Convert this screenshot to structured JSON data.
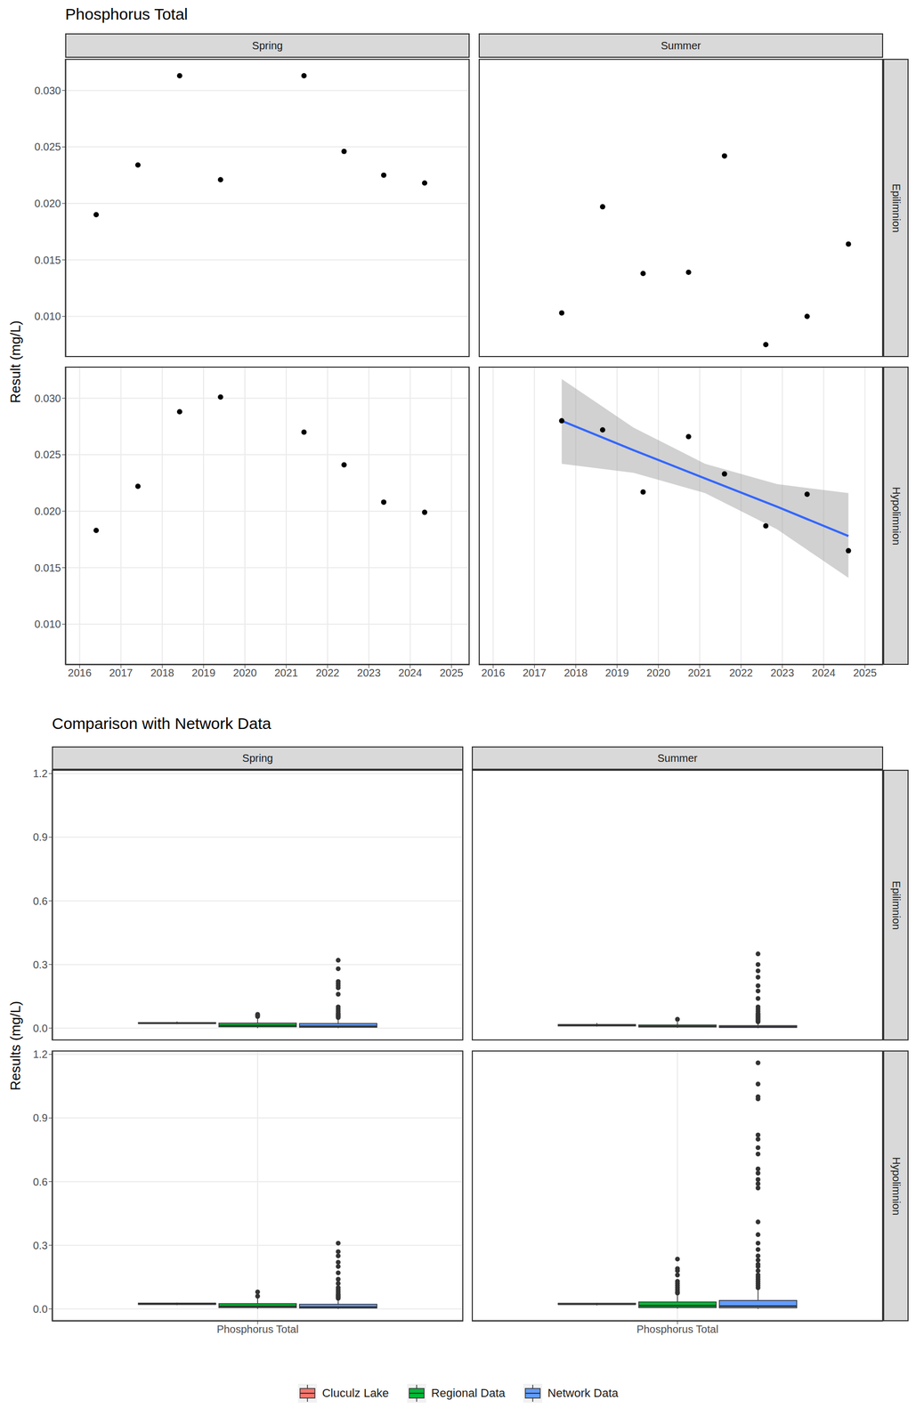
{
  "chart_data": [
    {
      "type": "scatter",
      "title": "Phosphorus Total",
      "y_label": "Result (mg/L)",
      "columns": [
        "Spring",
        "Summer"
      ],
      "rows": [
        "Epilimnion",
        "Hypolimnion"
      ],
      "xlim": [
        2015.65,
        2025.44
      ],
      "xticks": [
        2016,
        2017,
        2018,
        2019,
        2020,
        2021,
        2022,
        2023,
        2024,
        2025
      ],
      "ylim": [
        0.0064,
        0.0328
      ],
      "yticks": [
        {
          "value": 0.01,
          "label": "0.010"
        },
        0.015,
        {
          "value": 0.02,
          "label": "0.020"
        },
        0.025,
        {
          "value": 0.03,
          "label": "0.030"
        }
      ],
      "grid": true,
      "color": "#000000",
      "panels": [
        {
          "column": "Spring",
          "row": "Epilimnion",
          "x": [
            2016.4,
            2017.41,
            2018.42,
            2019.41,
            2021.43,
            2022.4,
            2023.36,
            2024.35
          ],
          "values": [
            0.019,
            0.0234,
            0.0313,
            0.0221,
            0.0313,
            0.0246,
            0.0225,
            0.0218
          ]
        },
        {
          "column": "Summer",
          "row": "Epilimnion",
          "x": [
            2017.66,
            2018.65,
            2019.63,
            2020.73,
            2021.6,
            2022.6,
            2023.6,
            2024.6
          ],
          "values": [
            0.0103,
            0.0197,
            0.0138,
            0.0139,
            0.0242,
            0.0075,
            0.01,
            0.0164
          ]
        },
        {
          "column": "Spring",
          "row": "Hypolimnion",
          "x": [
            2016.4,
            2017.41,
            2018.42,
            2019.41,
            2021.43,
            2022.4,
            2023.36,
            2024.35
          ],
          "values": [
            0.0183,
            0.0222,
            0.0288,
            0.0301,
            0.027,
            0.0241,
            0.0208,
            0.0199
          ]
        },
        {
          "column": "Summer",
          "row": "Hypolimnion",
          "x": [
            2017.66,
            2018.65,
            2019.63,
            2020.73,
            2021.6,
            2022.6,
            2023.6,
            2024.6
          ],
          "values": [
            0.028,
            0.0272,
            0.0217,
            0.0266,
            0.0233,
            0.0187,
            0.0215,
            0.0165
          ]
        }
      ],
      "trend": {
        "column": "Summer",
        "row": "Hypolimnion",
        "color": "#3366ff",
        "x": [
          2017.66,
          2019.4,
          2021.13,
          2022.87,
          2024.6
        ],
        "values": [
          0.028,
          0.0254,
          0.0229,
          0.0204,
          0.0178
        ],
        "lower": [
          0.0242,
          0.0234,
          0.0216,
          0.0184,
          0.0141
        ],
        "upper": [
          0.0317,
          0.0274,
          0.0242,
          0.0224,
          0.0216
        ]
      }
    },
    {
      "type": "box",
      "title": "Comparison with Network Data",
      "y_label": "Results (mg/L)",
      "categories": [
        "Phosphorus Total"
      ],
      "columns": [
        "Spring",
        "Summer"
      ],
      "rows": [
        "Epilimnion",
        "Hypolimnion"
      ],
      "ylim": [
        -0.058,
        1.218
      ],
      "yticks": [
        {
          "value": 0,
          "label": "0.0"
        },
        0.3,
        0.6,
        0.9,
        1.2
      ],
      "grid": true,
      "legend": "bottom",
      "series": [
        {
          "name": "Cluculz Lake",
          "color": "#F8766D"
        },
        {
          "name": "Regional Data",
          "color": "#00BA38"
        },
        {
          "name": "Network Data",
          "color": "#619CFF"
        }
      ],
      "panels": [
        {
          "column": "Spring",
          "row": "Epilimnion",
          "boxes": [
            {
              "series": "Cluculz Lake",
              "whisker_low": 0.019,
              "q1": 0.022,
              "median": 0.02295,
              "q3": 0.0263,
              "whisker_high": 0.0313,
              "outliers": []
            },
            {
              "series": "Regional Data",
              "whisker_low": 0.0,
              "q1": 0.006,
              "median": 0.012,
              "q3": 0.024,
              "whisker_high": 0.045,
              "outliers": [
                0.055,
                0.06,
                0.065
              ]
            },
            {
              "series": "Network Data",
              "whisker_low": 0.0,
              "q1": 0.004,
              "median": 0.009,
              "q3": 0.022,
              "whisker_high": 0.048,
              "outliers": [
                0.05,
                0.055,
                0.06,
                0.065,
                0.07,
                0.08,
                0.09,
                0.1,
                0.16,
                0.19,
                0.2,
                0.21,
                0.22,
                0.28,
                0.32
              ]
            }
          ]
        },
        {
          "column": "Summer",
          "row": "Epilimnion",
          "boxes": [
            {
              "series": "Cluculz Lake",
              "whisker_low": 0.0075,
              "q1": 0.0102,
              "median": 0.01385,
              "q3": 0.0172,
              "whisker_high": 0.0242,
              "outliers": []
            },
            {
              "series": "Regional Data",
              "whisker_low": 0.001,
              "q1": 0.005,
              "median": 0.009,
              "q3": 0.015,
              "whisker_high": 0.03,
              "outliers": [
                0.042
              ]
            },
            {
              "series": "Network Data",
              "whisker_low": 0.0,
              "q1": 0.003,
              "median": 0.006,
              "q3": 0.012,
              "whisker_high": 0.025,
              "outliers": [
                0.03,
                0.035,
                0.04,
                0.045,
                0.05,
                0.055,
                0.06,
                0.065,
                0.07,
                0.08,
                0.09,
                0.1,
                0.14,
                0.175,
                0.2,
                0.24,
                0.27,
                0.3,
                0.35
              ]
            }
          ]
        },
        {
          "column": "Spring",
          "row": "Hypolimnion",
          "boxes": [
            {
              "series": "Cluculz Lake",
              "whisker_low": 0.0183,
              "q1": 0.0206,
              "median": 0.02315,
              "q3": 0.0275,
              "whisker_high": 0.0301,
              "outliers": []
            },
            {
              "series": "Regional Data",
              "whisker_low": 0.0,
              "q1": 0.006,
              "median": 0.012,
              "q3": 0.025,
              "whisker_high": 0.05,
              "outliers": [
                0.06,
                0.08
              ]
            },
            {
              "series": "Network Data",
              "whisker_low": 0.0,
              "q1": 0.004,
              "median": 0.009,
              "q3": 0.022,
              "whisker_high": 0.048,
              "outliers": [
                0.05,
                0.055,
                0.06,
                0.065,
                0.07,
                0.08,
                0.09,
                0.1,
                0.12,
                0.14,
                0.17,
                0.2,
                0.22,
                0.25,
                0.27,
                0.31
              ]
            }
          ]
        },
        {
          "column": "Summer",
          "row": "Hypolimnion",
          "boxes": [
            {
              "series": "Cluculz Lake",
              "whisker_low": 0.0165,
              "q1": 0.0208,
              "median": 0.0225,
              "q3": 0.0268,
              "whisker_high": 0.028,
              "outliers": []
            },
            {
              "series": "Regional Data",
              "whisker_low": 0.001,
              "q1": 0.006,
              "median": 0.015,
              "q3": 0.033,
              "whisker_high": 0.07,
              "outliers": [
                0.075,
                0.08,
                0.09,
                0.1,
                0.11,
                0.12,
                0.13,
                0.16,
                0.18,
                0.19,
                0.235
              ]
            },
            {
              "series": "Network Data",
              "whisker_low": 0.0,
              "q1": 0.005,
              "median": 0.013,
              "q3": 0.04,
              "whisker_high": 0.093,
              "outliers": [
                0.1,
                0.11,
                0.12,
                0.13,
                0.14,
                0.15,
                0.16,
                0.18,
                0.2,
                0.21,
                0.23,
                0.25,
                0.28,
                0.31,
                0.35,
                0.41,
                0.57,
                0.59,
                0.61,
                0.64,
                0.66,
                0.73,
                0.76,
                0.8,
                0.82,
                0.99,
                1.0,
                1.06,
                1.16
              ]
            }
          ]
        }
      ]
    }
  ]
}
